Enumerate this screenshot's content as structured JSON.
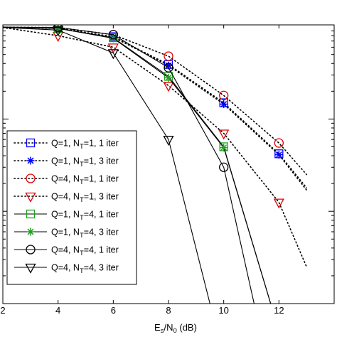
{
  "chart_data": {
    "type": "line",
    "title": "",
    "xlabel": "E_s/N_0 (dB)",
    "xlabel_parts": {
      "base": "E",
      "sub1": "s",
      "mid": "/N",
      "sub2": "0",
      "unit": " (dB)"
    },
    "ylabel": "",
    "xlim": [
      2,
      14
    ],
    "ylim_log10": [
      -3,
      0.02
    ],
    "x_ticks": [
      2,
      4,
      6,
      8,
      10,
      12
    ],
    "y_scale": "log",
    "legend_position": "left",
    "series": [
      {
        "name": "Q=1, N_T=1, 1 iter",
        "label": {
          "pre": "Q=1, N",
          "sub": "T",
          "post": "=1, 1 iter"
        },
        "style": "dotted",
        "marker": "square",
        "color": "#0000ff",
        "x": [
          2,
          4,
          6,
          8,
          10,
          12,
          13
        ],
        "y": [
          0.99,
          0.96,
          0.78,
          0.39,
          0.15,
          0.042,
          0.018
        ],
        "marker_x": [
          4,
          6,
          8,
          10,
          12
        ],
        "marker_y": [
          0.96,
          0.78,
          0.39,
          0.15,
          0.042
        ]
      },
      {
        "name": "Q=1, N_T=1, 3 iter",
        "label": {
          "pre": "Q=1, N",
          "sub": "T",
          "post": "=1, 3 iter"
        },
        "style": "dotted",
        "marker": "asterisk",
        "color": "#0000ff",
        "x": [
          2,
          4,
          6,
          8,
          10,
          12,
          13
        ],
        "y": [
          0.99,
          0.96,
          0.77,
          0.38,
          0.145,
          0.041,
          0.017
        ],
        "marker_x": [
          4,
          6,
          8,
          10,
          12
        ],
        "marker_y": [
          0.96,
          0.77,
          0.38,
          0.145,
          0.041
        ]
      },
      {
        "name": "Q=4, N_T=1, 1 iter",
        "label": {
          "pre": "Q=4, N",
          "sub": "T",
          "post": "=1, 1 iter"
        },
        "style": "dotted",
        "marker": "circle",
        "color": "#e00000",
        "x": [
          2,
          4,
          6,
          8,
          10,
          12,
          13
        ],
        "y": [
          0.99,
          0.98,
          0.82,
          0.48,
          0.18,
          0.055,
          0.025
        ],
        "marker_x": [
          4,
          6,
          8,
          10,
          12
        ],
        "marker_y": [
          0.98,
          0.82,
          0.48,
          0.18,
          0.055
        ]
      },
      {
        "name": "Q=4, N_T=1, 3 iter",
        "label": {
          "pre": "Q=4, N",
          "sub": "T",
          "post": "=1, 3 iter"
        },
        "style": "dotted",
        "marker": "triangle-down",
        "color": "#e00000",
        "x": [
          2,
          4,
          6,
          8,
          10,
          12,
          13
        ],
        "y": [
          0.98,
          0.8,
          0.6,
          0.23,
          0.07,
          0.0125,
          0.0025
        ],
        "marker_x": [
          4,
          6,
          8,
          10,
          12
        ],
        "marker_y": [
          0.8,
          0.6,
          0.23,
          0.07,
          0.0125
        ]
      },
      {
        "name": "Q=1, N_T=4, 1 iter",
        "label": {
          "pre": "Q=1, N",
          "sub": "T",
          "post": "=4, 1 iter"
        },
        "style": "solid",
        "marker": "square",
        "color": "#20a020",
        "x": [
          2,
          4,
          6,
          8,
          10,
          11.7
        ],
        "y": [
          0.99,
          0.96,
          0.76,
          0.29,
          0.05,
          0.001
        ],
        "marker_x": [
          4,
          6,
          8,
          10
        ],
        "marker_y": [
          0.96,
          0.76,
          0.29,
          0.05
        ]
      },
      {
        "name": "Q=1, N_T=4, 3 iter",
        "label": {
          "pre": "Q=1, N",
          "sub": "T",
          "post": "=4, 3 iter"
        },
        "style": "solid",
        "marker": "asterisk",
        "color": "#20a020",
        "x": [
          2,
          4,
          6,
          8,
          10,
          11.7
        ],
        "y": [
          0.99,
          0.96,
          0.75,
          0.28,
          0.049,
          0.001
        ],
        "marker_x": [
          4,
          6,
          8,
          10
        ],
        "marker_y": [
          0.96,
          0.75,
          0.28,
          0.049
        ]
      },
      {
        "name": "Q=4, N_T=4, 1 iter",
        "label": {
          "pre": "Q=4, N",
          "sub": "T",
          "post": "=4, 1 iter"
        },
        "style": "solid",
        "marker": "circle",
        "color": "#000000",
        "x": [
          2,
          4,
          6,
          8,
          10,
          11.1
        ],
        "y": [
          0.99,
          0.98,
          0.82,
          0.36,
          0.03,
          0.001
        ],
        "marker_x": [
          4,
          6,
          8,
          10
        ],
        "marker_y": [
          0.98,
          0.82,
          0.36,
          0.03
        ]
      },
      {
        "name": "Q=4, N_T=4, 3 iter",
        "label": {
          "pre": "Q=4, N",
          "sub": "T",
          "post": "=4, 3 iter"
        },
        "style": "solid",
        "marker": "triangle-down",
        "color": "#000000",
        "x": [
          2,
          4,
          6,
          8,
          9.5
        ],
        "y": [
          0.98,
          0.92,
          0.52,
          0.06,
          0.001
        ],
        "marker_x": [
          4,
          6,
          8
        ],
        "marker_y": [
          0.92,
          0.52,
          0.06
        ]
      }
    ]
  }
}
